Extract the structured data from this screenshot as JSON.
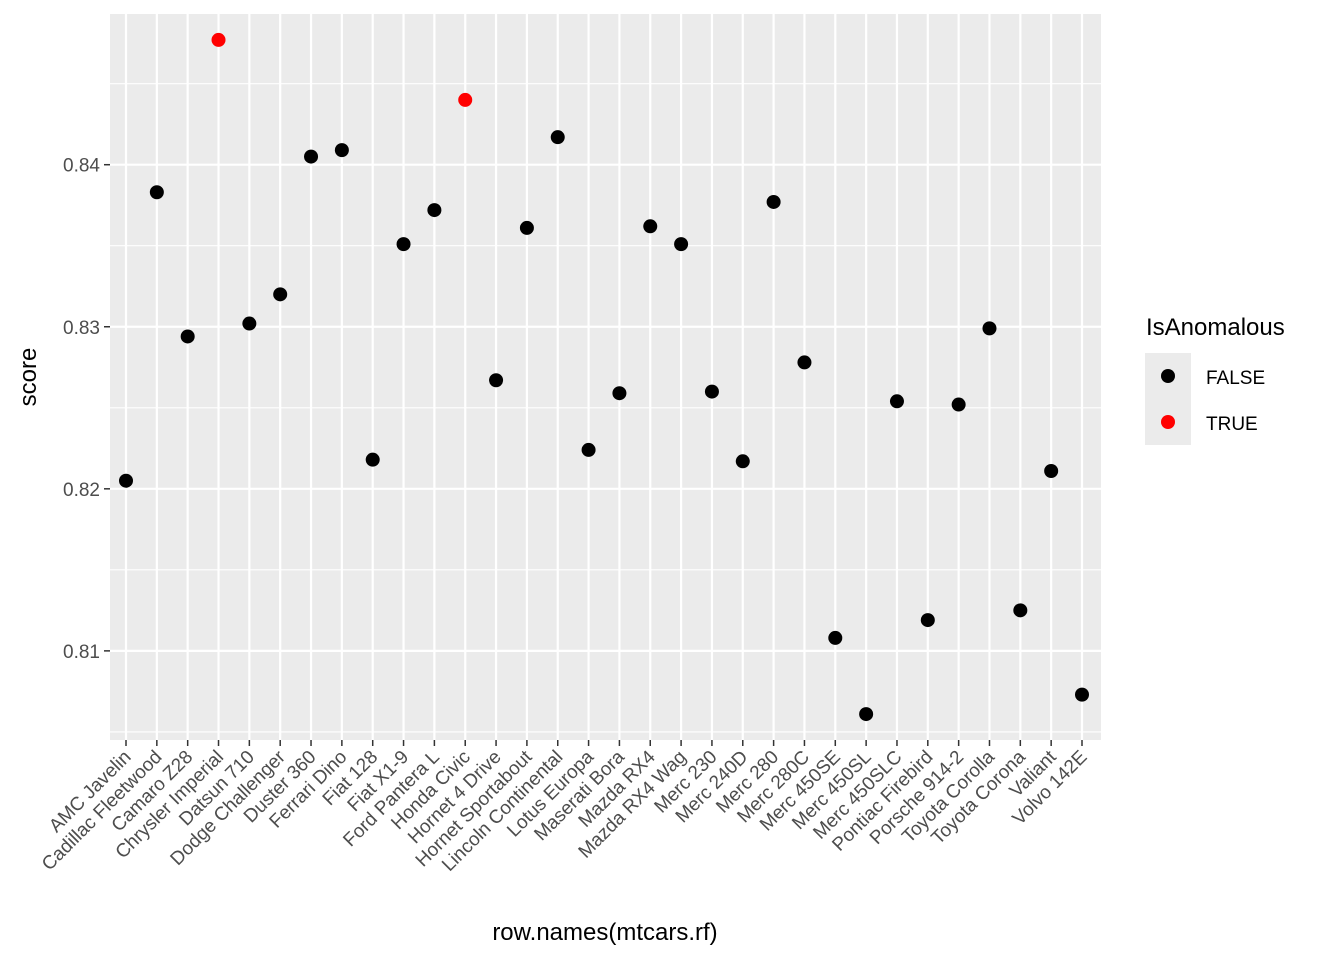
{
  "chart_data": {
    "type": "scatter",
    "xlabel": "row.names(mtcars.rf)",
    "ylabel": "score",
    "ylim": [
      0.8045,
      0.8493
    ],
    "yticks": [
      0.81,
      0.82,
      0.83,
      0.84
    ],
    "ytick_labels": [
      "0.81",
      "0.82",
      "0.83",
      "0.84"
    ],
    "grid": true,
    "legend": {
      "title": "IsAnomalous",
      "position": "right",
      "entries": [
        {
          "label": "FALSE",
          "color": "#000000"
        },
        {
          "label": "TRUE",
          "color": "#ff0000"
        }
      ]
    },
    "categories": [
      "AMC Javelin",
      "Cadillac Fleetwood",
      "Camaro Z28",
      "Chrysler Imperial",
      "Datsun 710",
      "Dodge Challenger",
      "Duster 360",
      "Ferrari Dino",
      "Fiat 128",
      "Fiat X1-9",
      "Ford Pantera L",
      "Honda Civic",
      "Hornet 4 Drive",
      "Hornet Sportabout",
      "Lincoln Continental",
      "Lotus Europa",
      "Maserati Bora",
      "Mazda RX4",
      "Mazda RX4 Wag",
      "Merc 230",
      "Merc 240D",
      "Merc 280",
      "Merc 280C",
      "Merc 450SE",
      "Merc 450SL",
      "Merc 450SLC",
      "Pontiac Firebird",
      "Porsche 914-2",
      "Toyota Corolla",
      "Toyota Corona",
      "Valiant",
      "Volvo 142E"
    ],
    "values": [
      0.8205,
      0.8383,
      0.8294,
      0.8477,
      0.8302,
      0.832,
      0.8405,
      0.8409,
      0.8218,
      0.8351,
      0.8372,
      0.844,
      0.8267,
      0.8361,
      0.8417,
      0.8224,
      0.8259,
      0.8362,
      0.8351,
      0.826,
      0.8217,
      0.8377,
      0.8278,
      0.8108,
      0.8061,
      0.8254,
      0.8119,
      0.8252,
      0.8299,
      0.8125,
      0.8211,
      0.8073
    ],
    "anomalous": [
      false,
      false,
      false,
      true,
      false,
      false,
      false,
      false,
      false,
      false,
      false,
      true,
      false,
      false,
      false,
      false,
      false,
      false,
      false,
      false,
      false,
      false,
      false,
      false,
      false,
      false,
      false,
      false,
      false,
      false,
      false,
      false
    ]
  }
}
